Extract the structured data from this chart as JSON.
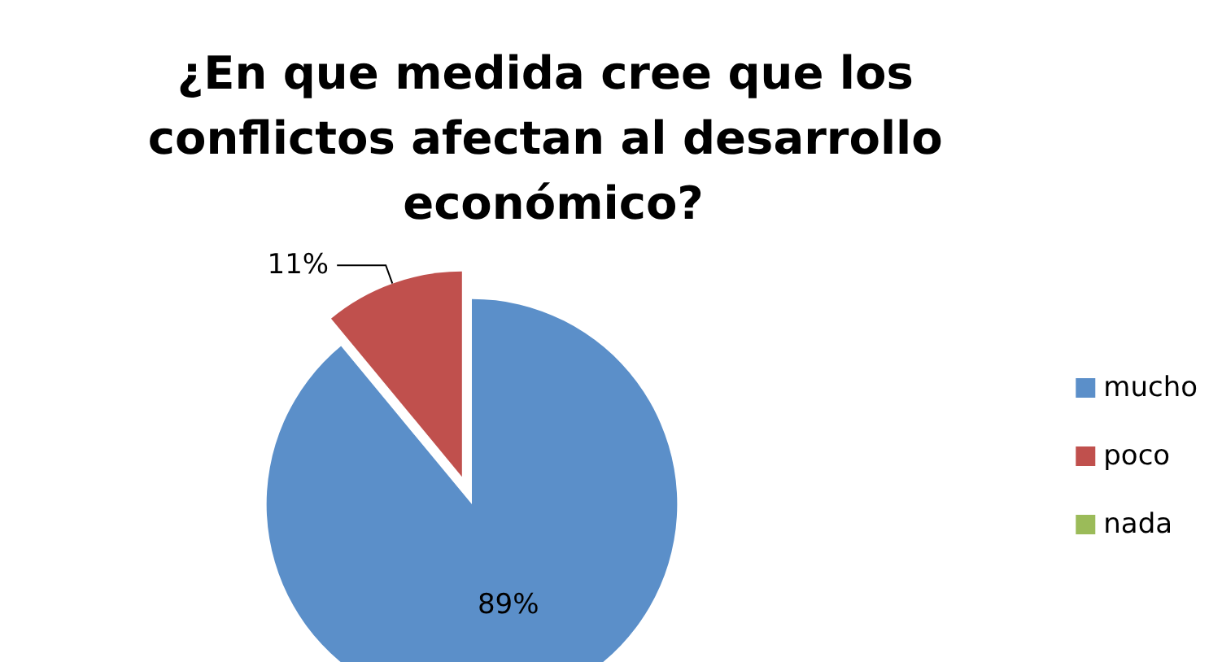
{
  "chart_data": {
    "type": "pie",
    "title": "¿En que medida cree que los conflictos afectan al desarrollo económico?",
    "categories": [
      "mucho",
      "poco",
      "nada"
    ],
    "values": [
      89,
      11,
      0
    ],
    "colors": [
      "#5b8fc9",
      "#c0504d",
      "#9bbb59"
    ],
    "value_labels": [
      "89%",
      "11%",
      null
    ],
    "legend": "right"
  }
}
